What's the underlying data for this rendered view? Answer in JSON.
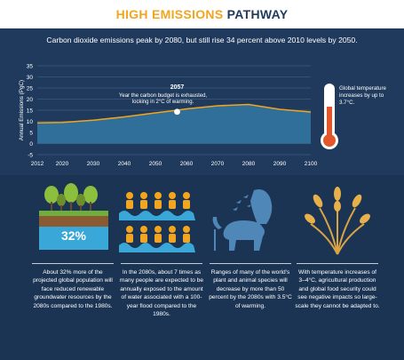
{
  "header": {
    "title_accent": "HIGH EMISSIONS",
    "title_rest": "PATHWAY"
  },
  "subtitle": "Carbon dioxide emissions peak by 2080, but still rise 34 percent above 2010 levels by 2050.",
  "chart_data": {
    "type": "area",
    "title": "",
    "ylabel": "Annual Emissions (PgC)",
    "xlabel": "",
    "xlim": [
      2012,
      2100
    ],
    "ylim": [
      -5,
      35
    ],
    "x_ticks": [
      "2012",
      "2020",
      "2030",
      "2040",
      "2050",
      "2060",
      "2070",
      "2080",
      "2090",
      "2100"
    ],
    "y_ticks": [
      "35",
      "30",
      "25",
      "20",
      "15",
      "10",
      "5",
      "0",
      "-5"
    ],
    "grid": true,
    "series": [
      {
        "x": [
          2012,
          2020,
          2030,
          2040,
          2050,
          2057,
          2060,
          2070,
          2080,
          2090,
          2100
        ],
        "y": [
          9.3,
          9.5,
          10.5,
          12.0,
          13.8,
          15.0,
          15.6,
          17.0,
          17.6,
          15.4,
          14.2
        ]
      }
    ],
    "annotation": {
      "x": 2057,
      "y": 14.3,
      "year": "2057",
      "text_line1": "Year the carbon budget is exhausted,",
      "text_line2": "locking in 2°C of warming."
    },
    "colors": {
      "fill": "#2f6f99",
      "line": "#f2a51d",
      "marker": "#ffffff"
    }
  },
  "thermometer": {
    "label": "Global temperature increases by up to 3.7°C.",
    "fill_color": "#e2572b"
  },
  "panels": [
    {
      "icon": "trees-soil-icon",
      "badge": "32%",
      "caption": "About 32% more of the projected global population will face reduced renewable groundwater resources by the 2080s compared to the 1980s."
    },
    {
      "icon": "people-flood-icon",
      "caption": "In the 2080s, about 7 times as many people are expected to be annually exposed to the amount of water associated with a 100-year flood compared to the 1980s."
    },
    {
      "icon": "wildlife-icon",
      "caption": "Ranges of many of the world's plant and animal species will decrease by more than 50 percent by the 2080s with 3.5°C of warming."
    },
    {
      "icon": "wheat-icon",
      "caption": "With temperature increases of 3–4°C, agricultural production and global food security could see negative impacts so large-scale they cannot be adapted to."
    }
  ]
}
